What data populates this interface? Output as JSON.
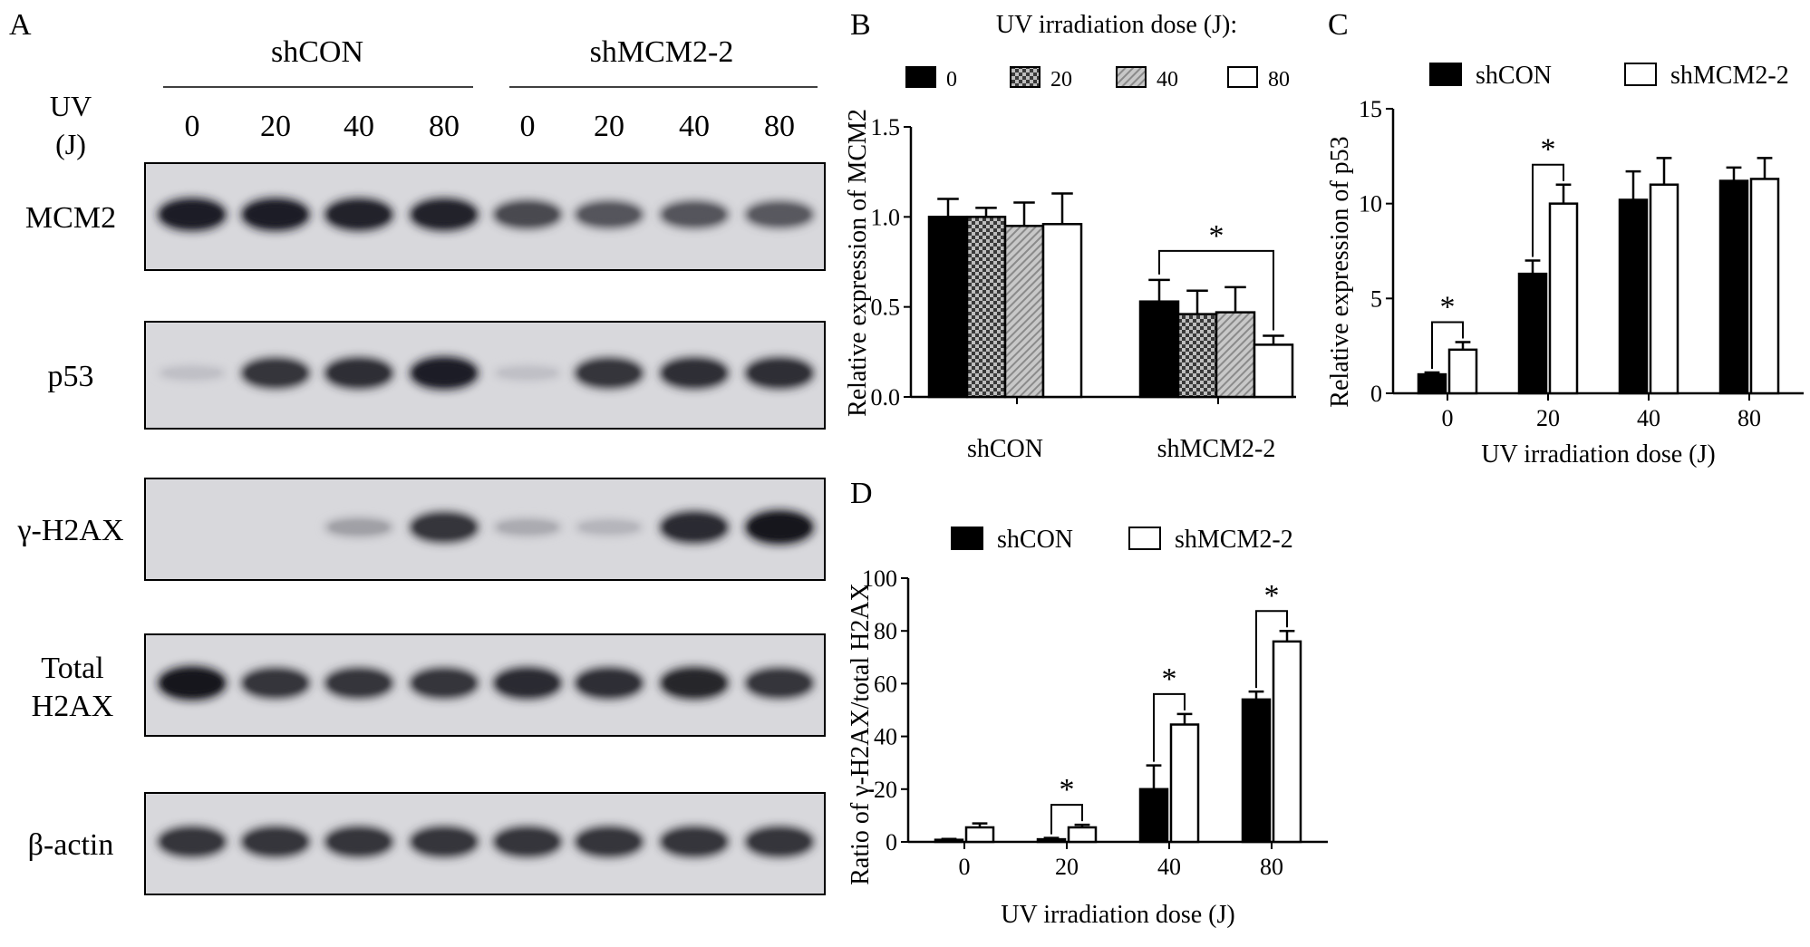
{
  "panel_a": {
    "letter": "A",
    "groups": [
      "shCON",
      "shMCM2-2"
    ],
    "uv_label_line1": "UV",
    "uv_label_line2": "(J)",
    "doses": [
      "0",
      "20",
      "40",
      "80",
      "0",
      "20",
      "40",
      "80"
    ],
    "blots": [
      {
        "label_lines": [
          "MCM2"
        ],
        "intensity": [
          0.95,
          0.95,
          0.93,
          0.93,
          0.75,
          0.7,
          0.7,
          0.68
        ]
      },
      {
        "label_lines": [
          "p53"
        ],
        "intensity": [
          0.2,
          0.85,
          0.88,
          0.95,
          0.2,
          0.85,
          0.88,
          0.88
        ]
      },
      {
        "label_lines": [
          "γ-H2AX"
        ],
        "intensity": [
          0.0,
          0.0,
          0.35,
          0.85,
          0.3,
          0.25,
          0.9,
          1.0
        ]
      },
      {
        "label_lines": [
          "Total",
          "H2AX"
        ],
        "intensity": [
          1.0,
          0.85,
          0.85,
          0.85,
          0.9,
          0.88,
          0.92,
          0.85
        ]
      },
      {
        "label_lines": [
          "β-actin"
        ],
        "intensity": [
          0.85,
          0.85,
          0.85,
          0.85,
          0.85,
          0.85,
          0.85,
          0.85
        ]
      }
    ]
  },
  "chart_data": [
    {
      "panel": "B",
      "type": "bar",
      "title": "UV irradiation dose (J):",
      "ylabel": "Relative expression of MCM2",
      "xlabel": "",
      "ylim": [
        0,
        1.5
      ],
      "yticks": [
        "0.0",
        "0.5",
        "1.0",
        "1.5"
      ],
      "categories": [
        "shCON",
        "shMCM2-2"
      ],
      "legend_position": "top",
      "series": [
        {
          "name": "0",
          "fill": "solid-black",
          "values": [
            1.0,
            0.53
          ],
          "errors": [
            0.1,
            0.12
          ]
        },
        {
          "name": "20",
          "fill": "checker",
          "values": [
            1.0,
            0.46
          ],
          "errors": [
            0.05,
            0.13
          ]
        },
        {
          "name": "40",
          "fill": "diagonal-gray",
          "values": [
            0.95,
            0.47
          ],
          "errors": [
            0.13,
            0.14
          ]
        },
        {
          "name": "80",
          "fill": "white",
          "values": [
            0.96,
            0.29
          ],
          "errors": [
            0.17,
            0.05
          ]
        }
      ],
      "annotations": [
        {
          "text": "*",
          "group": 1,
          "from_series": 0,
          "to_series": 3
        }
      ]
    },
    {
      "panel": "C",
      "type": "bar",
      "title": "",
      "ylabel": "Relative expression of p53",
      "xlabel": "UV irradiation dose (J)",
      "ylim": [
        0,
        15
      ],
      "yticks": [
        "0",
        "5",
        "10",
        "15"
      ],
      "categories": [
        "0",
        "20",
        "40",
        "80"
      ],
      "legend_position": "top",
      "series": [
        {
          "name": "shCON",
          "fill": "solid-black",
          "values": [
            1.0,
            6.3,
            10.2,
            11.2
          ],
          "errors": [
            0.1,
            0.7,
            1.5,
            0.7
          ]
        },
        {
          "name": "shMCM2-2",
          "fill": "white",
          "values": [
            2.3,
            10.0,
            11.0,
            11.3
          ],
          "errors": [
            0.4,
            1.0,
            1.4,
            1.1
          ]
        }
      ],
      "annotations": [
        {
          "text": "*",
          "category": 0
        },
        {
          "text": "*",
          "category": 1
        }
      ]
    },
    {
      "panel": "D",
      "type": "bar",
      "title": "",
      "ylabel": "Ratio of γ-H2AX/total H2AX",
      "xlabel": "UV irradiation dose (J)",
      "ylim": [
        0,
        100
      ],
      "yticks": [
        "0",
        "20",
        "40",
        "60",
        "80",
        "100"
      ],
      "categories": [
        "0",
        "20",
        "40",
        "80"
      ],
      "legend_position": "top",
      "series": [
        {
          "name": "shCON",
          "fill": "solid-black",
          "values": [
            0.8,
            1.0,
            20,
            54
          ],
          "errors": [
            0.3,
            0.5,
            9,
            3
          ]
        },
        {
          "name": "shMCM2-2",
          "fill": "white",
          "values": [
            5.5,
            5.5,
            44.5,
            76
          ],
          "errors": [
            1.5,
            1.0,
            4,
            4
          ]
        }
      ],
      "annotations": [
        {
          "text": "*",
          "category": 1
        },
        {
          "text": "*",
          "category": 2
        },
        {
          "text": "*",
          "category": 3
        }
      ]
    }
  ]
}
